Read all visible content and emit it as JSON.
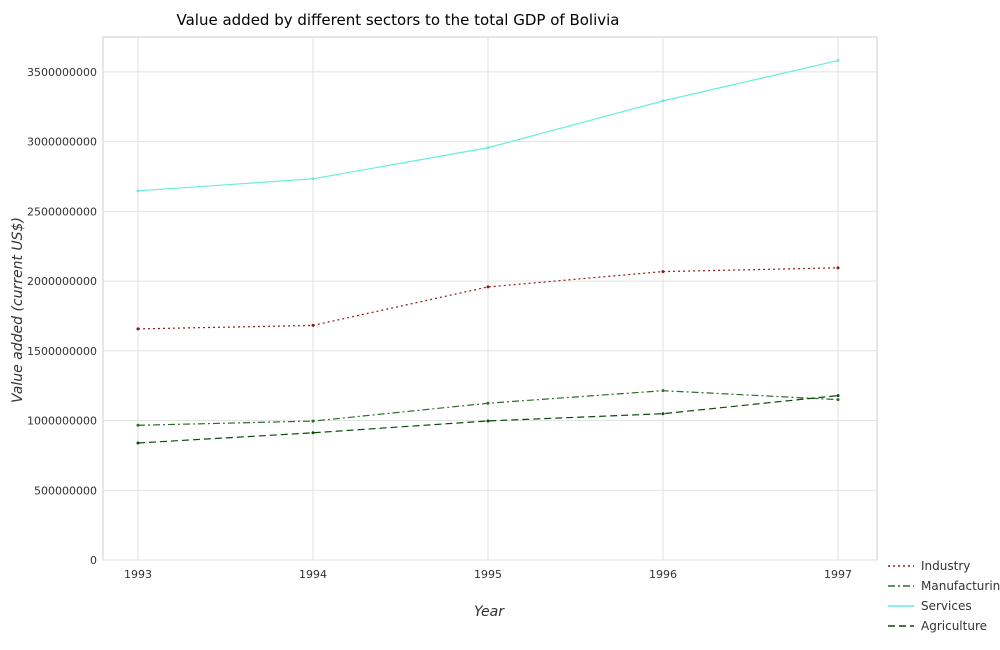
{
  "chart_data": {
    "type": "line",
    "title": "Value added by different sectors to the total GDP of Bolivia",
    "xlabel": "Year",
    "ylabel": "Value added (current US$)",
    "categories": [
      "1993",
      "1994",
      "1995",
      "1996",
      "1997"
    ],
    "ylim": [
      0,
      3750000000
    ],
    "yticks": [
      0,
      500000000,
      1000000000,
      1500000000,
      2000000000,
      2500000000,
      3000000000,
      3500000000
    ],
    "ytick_labels": [
      "0",
      "500000000",
      "1000000000",
      "1500000000",
      "2000000000",
      "2500000000",
      "3000000000",
      "3500000000"
    ],
    "grid": true,
    "legend_position": "bottom-right",
    "series": [
      {
        "name": "Industry",
        "color": "#8b1a1a",
        "dash": "dotted",
        "values": [
          1657000000,
          1682000000,
          1958000000,
          2068000000,
          2095000000
        ]
      },
      {
        "name": "Manufacturing",
        "color": "#2e6b2e",
        "dash": "dashdot",
        "values": [
          966000000,
          996000000,
          1124000000,
          1214000000,
          1150000000
        ]
      },
      {
        "name": "Services",
        "color": "#66eedd",
        "dash": "solid",
        "values": [
          2647000000,
          2733000000,
          2956000000,
          3292000000,
          3581000000
        ]
      },
      {
        "name": "Agriculture",
        "color": "#0a4a0a",
        "dash": "dashed",
        "values": [
          839000000,
          912000000,
          997000000,
          1049000000,
          1179000000
        ]
      }
    ]
  }
}
